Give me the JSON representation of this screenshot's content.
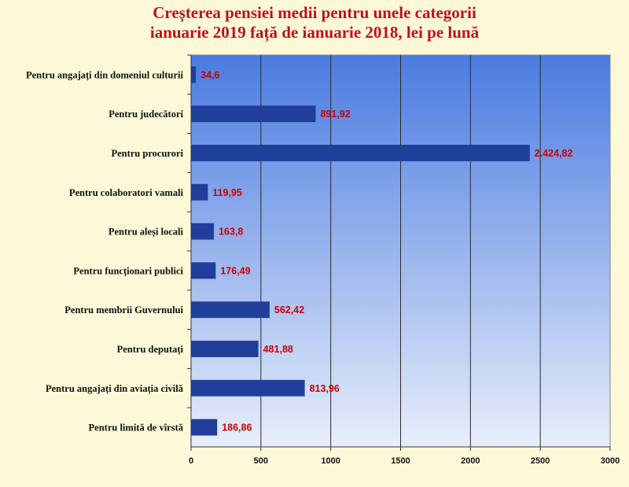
{
  "chart_data": {
    "type": "bar",
    "orientation": "horizontal",
    "title_line1": "Creșterea pensiei medii pentru unele categorii",
    "title_line2": "ianuarie 2019 față de ianuarie 2018, lei pe lună",
    "categories": [
      "Pentru angajați din domeniul culturii",
      "Pentru judecători",
      "Pentru procurori",
      "Pentru colaboratori vamali",
      "Pentru aleși locali",
      "Pentru funcționari publici",
      "Pentru membrii Guvernului",
      "Pentru deputați",
      "Pentru angajați din aviația civilă",
      "Pentru limită de vîrstă"
    ],
    "values": [
      34.6,
      891.92,
      2424.82,
      119.95,
      163.8,
      176.49,
      562.42,
      481.88,
      813.96,
      186.86
    ],
    "value_labels": [
      "34,6",
      "891,92",
      "2.424,82",
      "119,95",
      "163,8",
      "176,49",
      "562,42",
      "481,88",
      "813,96",
      "186,86"
    ],
    "xlim": [
      0,
      3000
    ],
    "xticks": [
      "0",
      "500",
      "1000",
      "1500",
      "2000",
      "2500",
      "3000"
    ],
    "grid": "vertical",
    "bar_color": "#1f3f9a",
    "plot_gradient": [
      "#4a7be0",
      "#e8eefa"
    ],
    "title_color": "#c0101a",
    "data_label_color": "#cc0000"
  }
}
